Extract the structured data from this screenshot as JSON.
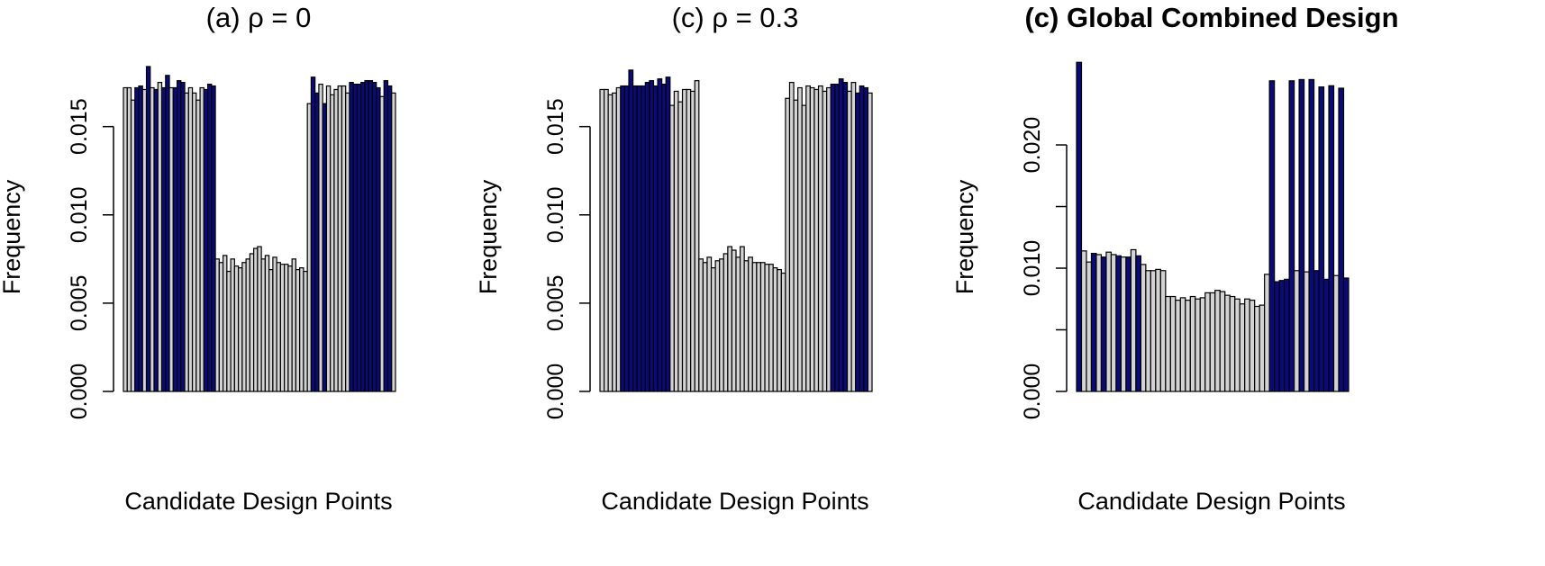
{
  "colors": {
    "highlight": "#0a0a78",
    "base": "#d3d3d3",
    "stroke": "#000000",
    "background": "#ffffff"
  },
  "chart_data": [
    {
      "type": "bar",
      "title": "(a) ρ = 0",
      "title_bold": false,
      "xlabel": "Candidate Design Points",
      "ylabel": "Frequency",
      "ylim": [
        0,
        0.0185
      ],
      "yticks": [
        0.0,
        0.005,
        0.01,
        0.015
      ],
      "ytick_labels": [
        "0.000",
        "0.005",
        "0.010",
        "0.015"
      ],
      "grid": false,
      "legend": "none",
      "values": [
        0.0172,
        0.0172,
        0.0165,
        0.0172,
        0.0173,
        0.0171,
        0.0184,
        0.0172,
        0.0171,
        0.0175,
        0.0172,
        0.0179,
        0.0172,
        0.0172,
        0.0176,
        0.0175,
        0.0169,
        0.0172,
        0.0169,
        0.0165,
        0.0172,
        0.0171,
        0.0174,
        0.0173,
        0.0075,
        0.0073,
        0.0077,
        0.0068,
        0.0075,
        0.0071,
        0.007,
        0.0073,
        0.0075,
        0.0078,
        0.0081,
        0.0082,
        0.0075,
        0.0077,
        0.0069,
        0.0076,
        0.0073,
        0.0072,
        0.0072,
        0.0071,
        0.0075,
        0.0069,
        0.007,
        0.0068,
        0.0163,
        0.0178,
        0.0169,
        0.0174,
        0.0163,
        0.0173,
        0.0168,
        0.0171,
        0.0173,
        0.0173,
        0.0169,
        0.0175,
        0.0174,
        0.0174,
        0.0175,
        0.0176,
        0.0176,
        0.0175,
        0.0172,
        0.0167,
        0.0176,
        0.0173,
        0.0169
      ],
      "highlighted": [
        0,
        0,
        0,
        1,
        1,
        0,
        1,
        0,
        1,
        0,
        1,
        1,
        0,
        1,
        1,
        1,
        0,
        0,
        0,
        0,
        0,
        1,
        1,
        1,
        0,
        0,
        0,
        0,
        0,
        0,
        0,
        0,
        0,
        0,
        0,
        0,
        0,
        0,
        0,
        0,
        0,
        0,
        0,
        0,
        0,
        0,
        0,
        0,
        0,
        1,
        1,
        0,
        1,
        0,
        0,
        0,
        0,
        0,
        0,
        1,
        1,
        1,
        1,
        1,
        1,
        1,
        1,
        0,
        1,
        1,
        0
      ]
    },
    {
      "type": "bar",
      "title": "(c) ρ = 0.3",
      "title_bold": false,
      "xlabel": "Candidate Design Points",
      "ylabel": "Frequency",
      "ylim": [
        0,
        0.0185
      ],
      "yticks": [
        0.0,
        0.005,
        0.01,
        0.015
      ],
      "ytick_labels": [
        "0.000",
        "0.005",
        "0.010",
        "0.015"
      ],
      "grid": false,
      "legend": "none",
      "values": [
        0.0171,
        0.0171,
        0.0168,
        0.0169,
        0.0172,
        0.0173,
        0.0173,
        0.0182,
        0.0173,
        0.0173,
        0.0173,
        0.0175,
        0.0176,
        0.0173,
        0.0177,
        0.0174,
        0.0178,
        0.0162,
        0.017,
        0.0164,
        0.0171,
        0.0171,
        0.017,
        0.0176,
        0.0075,
        0.0073,
        0.0076,
        0.007,
        0.0074,
        0.0075,
        0.0078,
        0.0082,
        0.008,
        0.0076,
        0.0082,
        0.0074,
        0.0076,
        0.0073,
        0.0073,
        0.0073,
        0.0072,
        0.0072,
        0.007,
        0.0069,
        0.0067,
        0.0166,
        0.0175,
        0.0165,
        0.0172,
        0.0162,
        0.0173,
        0.0172,
        0.0171,
        0.0173,
        0.017,
        0.0172,
        0.0174,
        0.0174,
        0.0177,
        0.0175,
        0.017,
        0.0175,
        0.0169,
        0.0173,
        0.0172,
        0.0169
      ],
      "highlighted": [
        0,
        0,
        0,
        0,
        0,
        1,
        1,
        1,
        1,
        1,
        1,
        1,
        1,
        1,
        1,
        1,
        1,
        0,
        0,
        0,
        0,
        0,
        0,
        0,
        0,
        0,
        0,
        0,
        0,
        0,
        0,
        0,
        0,
        0,
        0,
        0,
        0,
        0,
        0,
        0,
        0,
        0,
        0,
        0,
        0,
        0,
        0,
        0,
        0,
        0,
        0,
        0,
        0,
        0,
        0,
        0,
        1,
        1,
        1,
        1,
        0,
        0,
        1,
        1,
        1,
        0
      ]
    },
    {
      "type": "bar",
      "title": "(c) Global Combined Design",
      "title_bold": true,
      "xlabel": "Candidate Design Points",
      "ylabel": "Frequency",
      "ylim": [
        0,
        0.0265
      ],
      "yticks": [
        0.0,
        0.005,
        0.01,
        0.015,
        0.02
      ],
      "ytick_labels": [
        "0.000",
        "",
        "0.010",
        "",
        "0.020"
      ],
      "grid": false,
      "legend": "none",
      "values": [
        0.0267,
        0.0114,
        0.0105,
        0.0112,
        0.0111,
        0.0109,
        0.0113,
        0.0111,
        0.011,
        0.0109,
        0.0109,
        0.0115,
        0.011,
        0.0103,
        0.0098,
        0.0098,
        0.0099,
        0.0098,
        0.0077,
        0.0077,
        0.0074,
        0.0076,
        0.0074,
        0.0077,
        0.0075,
        0.0076,
        0.008,
        0.008,
        0.0082,
        0.0081,
        0.0078,
        0.0077,
        0.0075,
        0.0071,
        0.0075,
        0.0074,
        0.0069,
        0.007,
        0.0095,
        0.0252,
        0.0089,
        0.009,
        0.0091,
        0.0252,
        0.0098,
        0.0253,
        0.0097,
        0.0253,
        0.0098,
        0.0247,
        0.0091,
        0.0248,
        0.0094,
        0.0246,
        0.0092
      ],
      "highlighted": [
        1,
        0,
        0,
        1,
        0,
        1,
        0,
        0,
        1,
        0,
        1,
        0,
        1,
        0,
        0,
        0,
        0,
        0,
        0,
        0,
        0,
        0,
        0,
        0,
        0,
        0,
        0,
        0,
        0,
        0,
        0,
        0,
        0,
        0,
        0,
        0,
        0,
        0,
        0,
        1,
        1,
        1,
        1,
        1,
        0,
        1,
        0,
        1,
        1,
        1,
        1,
        1,
        0,
        1,
        1
      ]
    }
  ]
}
